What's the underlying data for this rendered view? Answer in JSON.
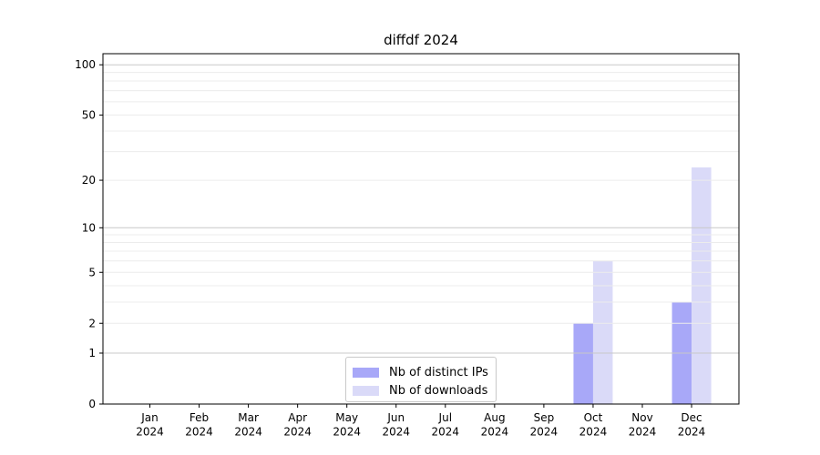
{
  "title": "diffdf 2024",
  "legend": {
    "items": [
      {
        "label": "Nb of distinct IPs",
        "color": "#a8a8f8"
      },
      {
        "label": "Nb of downloads",
        "color": "#dadaf8"
      }
    ],
    "position": "lower center inside plot"
  },
  "colors": {
    "background": "#ffffff",
    "axis": "#000000",
    "text": "#000000",
    "grid_minor": "#ececec",
    "grid_major": "#c8c8c8",
    "legend_border": "#c9c9c9",
    "bar_distinct_ips": "#a8a8f8",
    "bar_downloads": "#dadaf8"
  },
  "chart_data": {
    "type": "bar",
    "title": "diffdf 2024",
    "categories": [
      "Jan",
      "Feb",
      "Mar",
      "Apr",
      "May",
      "Jun",
      "Jul",
      "Aug",
      "Sep",
      "Oct",
      "Nov",
      "Dec"
    ],
    "x_year_label": "2024",
    "series": [
      {
        "name": "Nb of distinct IPs",
        "color": "#a8a8f8",
        "values": [
          0,
          0,
          0,
          0,
          0,
          0,
          0,
          0,
          0,
          2,
          0,
          3
        ]
      },
      {
        "name": "Nb of downloads",
        "color": "#dadaf8",
        "values": [
          0,
          0,
          0,
          0,
          0,
          0,
          0,
          0,
          0,
          6,
          0,
          24
        ]
      }
    ],
    "xlabel": "",
    "ylabel": "",
    "y_scale": "log10(value+1)",
    "y_ticks": [
      0,
      1,
      2,
      5,
      10,
      20,
      50,
      100
    ],
    "y_minor_gridlines": [
      2,
      3,
      4,
      5,
      6,
      7,
      8,
      9,
      20,
      30,
      40,
      50,
      60,
      70,
      80,
      90
    ],
    "y_major_gridlines": [
      1,
      10,
      100
    ],
    "ylim": [
      0,
      117
    ],
    "grid": true,
    "grid_over_bars": true,
    "legend_position": "lower center"
  }
}
